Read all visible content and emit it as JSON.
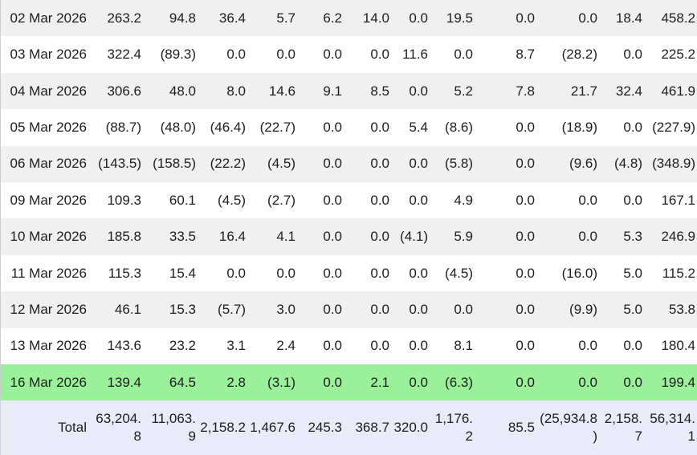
{
  "table": {
    "rows": [
      {
        "date": "02 Mar 2026",
        "values": [
          "263.2",
          "94.8",
          "36.4",
          "5.7",
          "6.2",
          "14.0",
          "0.0",
          "19.5",
          "0.0",
          "0.0",
          "18.4",
          "458.2"
        ],
        "highlighted": false
      },
      {
        "date": "03 Mar 2026",
        "values": [
          "322.4",
          "(89.3)",
          "0.0",
          "0.0",
          "0.0",
          "0.0",
          "11.6",
          "0.0",
          "8.7",
          "(28.2)",
          "0.0",
          "225.2"
        ],
        "highlighted": false
      },
      {
        "date": "04 Mar 2026",
        "values": [
          "306.6",
          "48.0",
          "8.0",
          "14.6",
          "9.1",
          "8.5",
          "0.0",
          "5.2",
          "7.8",
          "21.7",
          "32.4",
          "461.9"
        ],
        "highlighted": false
      },
      {
        "date": "05 Mar 2026",
        "values": [
          "(88.7)",
          "(48.0)",
          "(46.4)",
          "(22.7)",
          "0.0",
          "0.0",
          "5.4",
          "(8.6)",
          "0.0",
          "(18.9)",
          "0.0",
          "(227.9)"
        ],
        "highlighted": false
      },
      {
        "date": "06 Mar 2026",
        "values": [
          "(143.5)",
          "(158.5)",
          "(22.2)",
          "(4.5)",
          "0.0",
          "0.0",
          "0.0",
          "(5.8)",
          "0.0",
          "(9.6)",
          "(4.8)",
          "(348.9)"
        ],
        "highlighted": false
      },
      {
        "date": "09 Mar 2026",
        "values": [
          "109.3",
          "60.1",
          "(4.5)",
          "(2.7)",
          "0.0",
          "0.0",
          "0.0",
          "4.9",
          "0.0",
          "0.0",
          "0.0",
          "167.1"
        ],
        "highlighted": false
      },
      {
        "date": "10 Mar 2026",
        "values": [
          "185.8",
          "33.5",
          "16.4",
          "4.1",
          "0.0",
          "0.0",
          "(4.1)",
          "5.9",
          "0.0",
          "0.0",
          "5.3",
          "246.9"
        ],
        "highlighted": false
      },
      {
        "date": "11 Mar 2026",
        "values": [
          "115.3",
          "15.4",
          "0.0",
          "0.0",
          "0.0",
          "0.0",
          "0.0",
          "(4.5)",
          "0.0",
          "(16.0)",
          "5.0",
          "115.2"
        ],
        "highlighted": false
      },
      {
        "date": "12 Mar 2026",
        "values": [
          "46.1",
          "15.3",
          "(5.7)",
          "3.0",
          "0.0",
          "0.0",
          "0.0",
          "0.0",
          "0.0",
          "(9.9)",
          "5.0",
          "53.8"
        ],
        "highlighted": false
      },
      {
        "date": "13 Mar 2026",
        "values": [
          "143.6",
          "23.2",
          "3.1",
          "2.4",
          "0.0",
          "0.0",
          "0.0",
          "8.1",
          "0.0",
          "0.0",
          "0.0",
          "180.4"
        ],
        "highlighted": false
      },
      {
        "date": "16 Mar 2026",
        "values": [
          "139.4",
          "64.5",
          "2.8",
          "(3.1)",
          "0.0",
          "2.1",
          "0.0",
          "(6.3)",
          "0.0",
          "0.0",
          "0.0",
          "199.4"
        ],
        "highlighted": true
      }
    ],
    "total_row": {
      "label": "Total",
      "values": [
        "63,204.8",
        "11,063.9",
        "2,158.2",
        "1,467.6",
        "245.3",
        "368.7",
        "320.0",
        "1,176.2",
        "85.5",
        "(25,934.8)",
        "2,158.7",
        "56,314.1"
      ]
    }
  },
  "colors": {
    "text": "#1d1d1f",
    "row_bg": "#ffffff",
    "row_alt_bg": "#f0f0f0",
    "selected_row_bg": "#9af19a",
    "total_row_bg": "#e9ecf8",
    "negative": "#ff3b30",
    "left_border": "#cfcfd3"
  }
}
